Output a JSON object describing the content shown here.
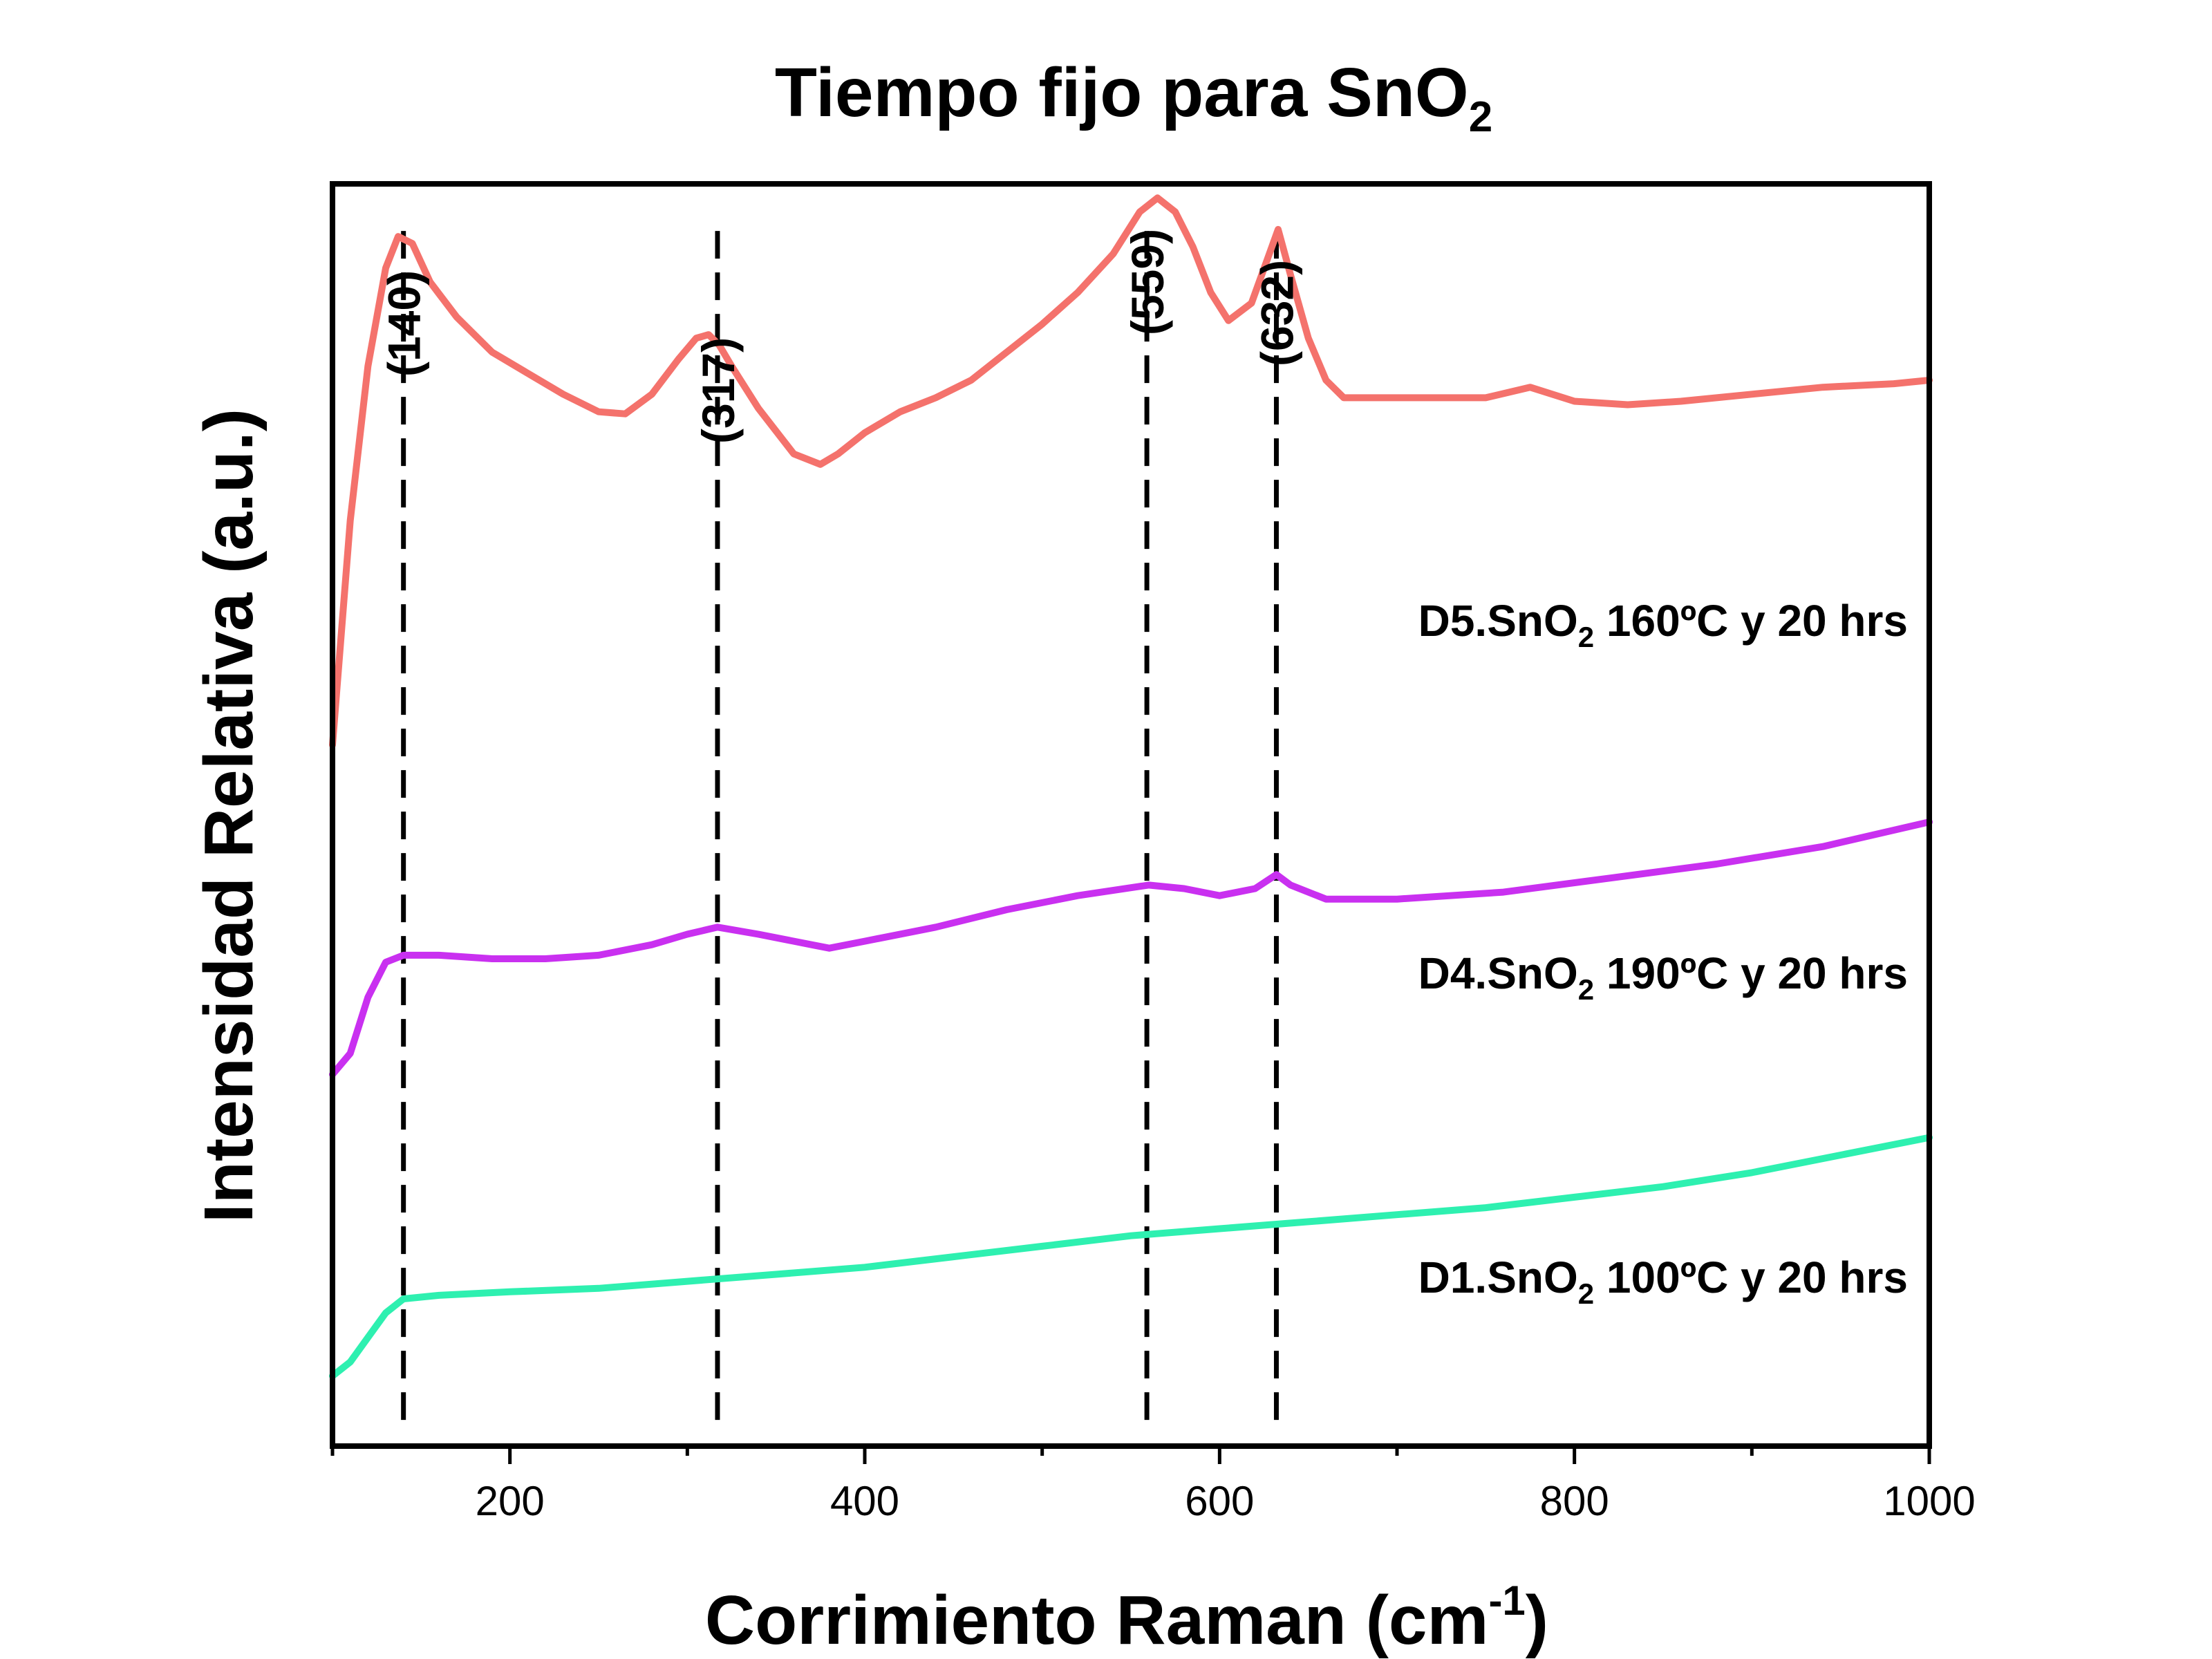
{
  "chart_data": {
    "type": "line",
    "title": "Tiempo fijo para SnO",
    "title_subscript": "2",
    "xlabel": "Corrimiento Raman (cm",
    "xlabel_superscript": "-1",
    "xlabel_suffix": ")",
    "ylabel": "Intensidad Relativa (a.u.)",
    "xlim": [
      100,
      1000
    ],
    "x_ticks": [
      200,
      400,
      600,
      800,
      1000
    ],
    "y_ticks_shown": false,
    "grid": false,
    "peak_markers": [
      {
        "x": 140,
        "label": "(140)"
      },
      {
        "x": 317,
        "label": "(317)"
      },
      {
        "x": 559,
        "label": "(559)"
      },
      {
        "x": 632,
        "label": "(632)"
      }
    ],
    "series": [
      {
        "name": "D5.SnO2 160ºC y 20 hrs",
        "label_parts": [
          "D5.SnO",
          "2",
          " 160ºC y 20 hrs"
        ],
        "color": "#F4726C",
        "x": [
          100,
          110,
          120,
          130,
          137,
          145,
          155,
          170,
          190,
          210,
          230,
          250,
          265,
          280,
          295,
          305,
          312,
          318,
          325,
          340,
          360,
          375,
          385,
          400,
          420,
          440,
          460,
          480,
          500,
          520,
          540,
          555,
          565,
          575,
          585,
          595,
          605,
          618,
          628,
          633,
          640,
          650,
          660,
          670,
          690,
          720,
          750,
          775,
          800,
          830,
          860,
          900,
          940,
          980,
          1000
        ],
        "y": [
          0.2,
          0.52,
          0.74,
          0.88,
          0.925,
          0.915,
          0.86,
          0.81,
          0.76,
          0.73,
          0.7,
          0.675,
          0.672,
          0.7,
          0.75,
          0.78,
          0.785,
          0.77,
          0.74,
          0.68,
          0.615,
          0.6,
          0.615,
          0.645,
          0.675,
          0.695,
          0.72,
          0.76,
          0.8,
          0.845,
          0.9,
          0.96,
          0.98,
          0.96,
          0.91,
          0.845,
          0.805,
          0.83,
          0.9,
          0.935,
          0.87,
          0.78,
          0.72,
          0.695,
          0.695,
          0.695,
          0.695,
          0.71,
          0.69,
          0.685,
          0.69,
          0.7,
          0.71,
          0.715,
          0.72
        ]
      },
      {
        "name": "D4.SnO2 190ºC y 20 hrs",
        "label_parts": [
          "D4.SnO",
          "2",
          " 190ºC y 20 hrs"
        ],
        "color": "#C930F0",
        "x": [
          100,
          110,
          120,
          130,
          140,
          160,
          190,
          220,
          250,
          280,
          300,
          317,
          340,
          370,
          380,
          400,
          440,
          480,
          520,
          560,
          580,
          600,
          620,
          632,
          640,
          660,
          700,
          760,
          820,
          880,
          940,
          1000
        ],
        "y": [
          -0.27,
          -0.24,
          -0.16,
          -0.11,
          -0.1,
          -0.1,
          -0.105,
          -0.105,
          -0.1,
          -0.085,
          -0.07,
          -0.06,
          -0.07,
          -0.085,
          -0.09,
          -0.08,
          -0.06,
          -0.035,
          -0.015,
          0.0,
          -0.005,
          -0.015,
          -0.005,
          0.015,
          0.0,
          -0.02,
          -0.02,
          -0.01,
          0.01,
          0.03,
          0.055,
          0.09
        ]
      },
      {
        "name": "D1.SnO2 100ºC y 20 hrs",
        "label_parts": [
          "D1.SnO",
          "2",
          " 100ºC y 20 hrs"
        ],
        "color": "#2EF0B0",
        "x": [
          100,
          110,
          120,
          130,
          140,
          160,
          200,
          250,
          300,
          350,
          400,
          450,
          500,
          550,
          600,
          650,
          700,
          750,
          800,
          850,
          900,
          950,
          1000
        ],
        "y": [
          -0.7,
          -0.68,
          -0.645,
          -0.61,
          -0.59,
          -0.585,
          -0.58,
          -0.575,
          -0.565,
          -0.555,
          -0.545,
          -0.53,
          -0.515,
          -0.5,
          -0.49,
          -0.48,
          -0.47,
          -0.46,
          -0.445,
          -0.43,
          -0.41,
          -0.385,
          -0.36
        ]
      }
    ]
  }
}
